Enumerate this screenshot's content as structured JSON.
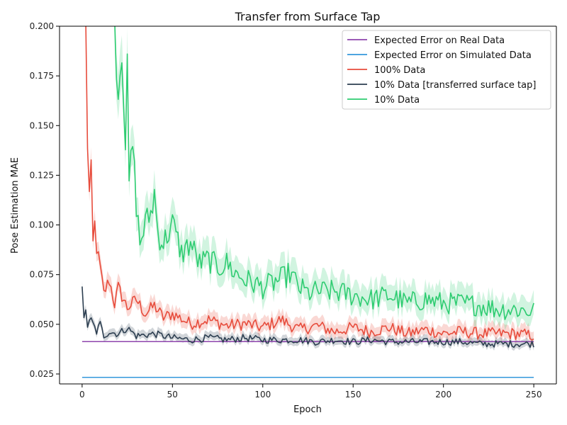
{
  "chart_data": {
    "type": "line",
    "title": "Transfer from Surface Tap",
    "xlabel": "Epoch",
    "ylabel": "Pose Estimation MAE",
    "xlim": [
      -12.5,
      262.5
    ],
    "ylim": [
      0.02,
      0.2
    ],
    "xticks": [
      0,
      50,
      100,
      150,
      200,
      250
    ],
    "xtick_labels": [
      "0",
      "50",
      "100",
      "150",
      "200",
      "250"
    ],
    "yticks": [
      0.025,
      0.05,
      0.075,
      0.1,
      0.125,
      0.15,
      0.175,
      0.2
    ],
    "ytick_labels": [
      "0.025",
      "0.050",
      "0.075",
      "0.100",
      "0.125",
      "0.150",
      "0.175",
      "0.200"
    ],
    "legend_position": "top-right",
    "grid": false,
    "series": [
      {
        "name": "Expected Error on Real Data",
        "color": "#8e44ad",
        "style": "constant",
        "x": [
          0,
          250
        ],
        "y": [
          0.0413,
          0.0413
        ]
      },
      {
        "name": "Expected Error on Simulated Data",
        "color": "#3498db",
        "style": "constant",
        "x": [
          0,
          250
        ],
        "y": [
          0.0233,
          0.0233
        ]
      },
      {
        "name": "100% Data",
        "color": "#e74c3c",
        "band": 0.005,
        "x": [
          2,
          3,
          4,
          5,
          6,
          7,
          8,
          10,
          12,
          15,
          18,
          20,
          25,
          30,
          35,
          40,
          45,
          50,
          60,
          70,
          80,
          90,
          100,
          110,
          120,
          130,
          140,
          150,
          160,
          170,
          180,
          190,
          200,
          210,
          220,
          230,
          240,
          250
        ],
        "y": [
          0.2,
          0.14,
          0.115,
          0.127,
          0.09,
          0.1,
          0.088,
          0.078,
          0.065,
          0.072,
          0.06,
          0.068,
          0.058,
          0.062,
          0.055,
          0.059,
          0.053,
          0.055,
          0.05,
          0.052,
          0.049,
          0.05,
          0.048,
          0.052,
          0.047,
          0.049,
          0.046,
          0.048,
          0.046,
          0.048,
          0.045,
          0.047,
          0.045,
          0.046,
          0.045,
          0.045,
          0.045,
          0.044
        ]
      },
      {
        "name": "10% Data [transferred surface tap]",
        "color": "#2c3e50",
        "band": 0.003,
        "x": [
          0,
          1,
          2,
          3,
          5,
          8,
          10,
          12,
          15,
          20,
          25,
          30,
          40,
          50,
          60,
          70,
          80,
          90,
          100,
          110,
          120,
          130,
          140,
          150,
          160,
          170,
          180,
          190,
          200,
          210,
          220,
          230,
          240,
          250
        ],
        "y": [
          0.067,
          0.052,
          0.058,
          0.049,
          0.052,
          0.046,
          0.05,
          0.044,
          0.046,
          0.045,
          0.048,
          0.044,
          0.045,
          0.043,
          0.042,
          0.043,
          0.042,
          0.043,
          0.042,
          0.042,
          0.042,
          0.041,
          0.042,
          0.041,
          0.042,
          0.041,
          0.041,
          0.041,
          0.041,
          0.041,
          0.04,
          0.04,
          0.04,
          0.04
        ]
      },
      {
        "name": "10% Data",
        "color": "#2ecc71",
        "band": 0.008,
        "x": [
          18,
          20,
          22,
          24,
          25,
          26,
          28,
          30,
          32,
          35,
          38,
          40,
          42,
          45,
          50,
          55,
          60,
          65,
          70,
          75,
          80,
          85,
          90,
          95,
          100,
          105,
          110,
          115,
          120,
          125,
          130,
          140,
          150,
          160,
          170,
          180,
          190,
          200,
          210,
          220,
          230,
          240,
          250
        ],
        "y": [
          0.2,
          0.165,
          0.19,
          0.14,
          0.175,
          0.12,
          0.14,
          0.11,
          0.09,
          0.1,
          0.105,
          0.115,
          0.095,
          0.09,
          0.1,
          0.085,
          0.09,
          0.08,
          0.082,
          0.078,
          0.08,
          0.075,
          0.072,
          0.07,
          0.068,
          0.07,
          0.072,
          0.075,
          0.068,
          0.065,
          0.066,
          0.066,
          0.064,
          0.062,
          0.064,
          0.06,
          0.062,
          0.06,
          0.06,
          0.059,
          0.057,
          0.057,
          0.056
        ]
      }
    ]
  }
}
